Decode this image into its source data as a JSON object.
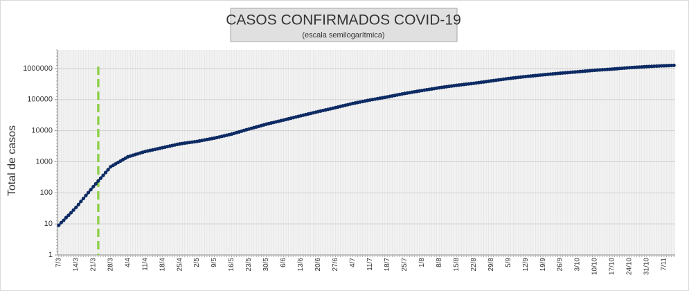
{
  "chart_data": {
    "type": "line",
    "title": "CASOS CONFIRMADOS COVID-19",
    "subtitle": "(escala semilogarítmica)",
    "y_label": "Total de casos",
    "log_y": true,
    "grid": true,
    "ylim": [
      1,
      4000000
    ],
    "yticks": [
      1,
      10,
      100,
      1000,
      10000,
      100000,
      1000000
    ],
    "vline": {
      "index": 16,
      "color": "#92d050"
    },
    "categories": [
      "7/3",
      null,
      null,
      null,
      null,
      null,
      null,
      "14/3",
      null,
      null,
      null,
      null,
      null,
      null,
      "21/3",
      null,
      null,
      null,
      null,
      null,
      null,
      "28/3",
      null,
      null,
      null,
      null,
      null,
      null,
      "4/4",
      null,
      null,
      null,
      null,
      null,
      null,
      "11/4",
      null,
      null,
      null,
      null,
      null,
      null,
      "18/4",
      null,
      null,
      null,
      null,
      null,
      null,
      "25/4",
      null,
      null,
      null,
      null,
      null,
      null,
      "2/5",
      null,
      null,
      null,
      null,
      null,
      null,
      "9/5",
      null,
      null,
      null,
      null,
      null,
      null,
      "16/5",
      null,
      null,
      null,
      null,
      null,
      null,
      "23/5",
      null,
      null,
      null,
      null,
      null,
      null,
      "30/5",
      null,
      null,
      null,
      null,
      null,
      null,
      "6/6",
      null,
      null,
      null,
      null,
      null,
      null,
      "13/6",
      null,
      null,
      null,
      null,
      null,
      null,
      "20/6",
      null,
      null,
      null,
      null,
      null,
      null,
      "27/6",
      null,
      null,
      null,
      null,
      null,
      null,
      "4/7",
      null,
      null,
      null,
      null,
      null,
      null,
      "11/7",
      null,
      null,
      null,
      null,
      null,
      null,
      "18/7",
      null,
      null,
      null,
      null,
      null,
      null,
      "25/7",
      null,
      null,
      null,
      null,
      null,
      null,
      "1/8",
      null,
      null,
      null,
      null,
      null,
      null,
      "8/8",
      null,
      null,
      null,
      null,
      null,
      null,
      "15/8",
      null,
      null,
      null,
      null,
      null,
      null,
      "22/8",
      null,
      null,
      null,
      null,
      null,
      null,
      "29/8",
      null,
      null,
      null,
      null,
      null,
      null,
      "5/9",
      null,
      null,
      null,
      null,
      null,
      null,
      "12/9",
      null,
      null,
      null,
      null,
      null,
      null,
      "19/9",
      null,
      null,
      null,
      null,
      null,
      null,
      "26/9",
      null,
      null,
      null,
      null,
      null,
      null,
      "3/10",
      null,
      null,
      null,
      null,
      null,
      null,
      "10/10",
      null,
      null,
      null,
      null,
      null,
      null,
      "17/10",
      null,
      null,
      null,
      null,
      null,
      null,
      "24/10",
      null,
      null,
      null,
      null,
      null,
      null,
      "31/10",
      null,
      null,
      null,
      null,
      null,
      null,
      "7/11",
      null,
      null,
      null,
      null
    ],
    "series": [
      {
        "name": "Total de casos",
        "color": "#0d2a63",
        "values": [
          9,
          11,
          13,
          16,
          19,
          23,
          28,
          34,
          42,
          53,
          66,
          82,
          102,
          127,
          158,
          195,
          241,
          297,
          366,
          452,
          558,
          690,
          767,
          853,
          949,
          1055,
          1173,
          1305,
          1451,
          1534,
          1621,
          1714,
          1811,
          1915,
          2024,
          2142,
          2230,
          2321,
          2416,
          2515,
          2618,
          2726,
          2839,
          2958,
          3082,
          3212,
          3347,
          3487,
          3634,
          3780,
          3880,
          3983,
          4088,
          4196,
          4307,
          4418,
          4532,
          4693,
          4860,
          5034,
          5213,
          5398,
          5582,
          5776,
          6031,
          6296,
          6573,
          6863,
          7165,
          7479,
          7805,
          8236,
          8689,
          9168,
          9673,
          10205,
          10770,
          11353,
          11945,
          12566,
          13220,
          13907,
          14631,
          15392,
          16214,
          16948,
          17714,
          18514,
          19350,
          20225,
          21138,
          22020,
          23055,
          24139,
          25273,
          26461,
          27705,
          29007,
          30295,
          31658,
          33083,
          34571,
          36127,
          37753,
          39452,
          41204,
          42976,
          44824,
          46751,
          48761,
          50858,
          53045,
          55343,
          57834,
          60436,
          63156,
          65998,
          68968,
          72071,
          75376,
          78203,
          81135,
          84178,
          87335,
          90610,
          94008,
          97509,
          100746,
          104091,
          107547,
          111117,
          114806,
          118618,
          122524,
          127094,
          131835,
          136752,
          141853,
          147144,
          152633,
          158334,
          163306,
          168434,
          173723,
          179178,
          184804,
          190607,
          196543,
          202439,
          208512,
          214768,
          221211,
          227847,
          234683,
          241811,
          248074,
          254499,
          261091,
          267853,
          274790,
          281907,
          289100,
          295460,
          301960,
          308603,
          315392,
          322331,
          329422,
          336802,
          345323,
          354060,
          363018,
          372202,
          381619,
          391274,
          401239,
          411471,
          421963,
          432723,
          443758,
          455074,
          466678,
          478792,
          489086,
          499601,
          510343,
          521315,
          532523,
          543972,
          555537,
          565759,
          576169,
          586771,
          597567,
          608562,
          619760,
          631365,
          642225,
          653271,
          664507,
          675937,
          687563,
          699389,
          711325,
          722208,
          733258,
          744477,
          755867,
          767432,
          779174,
          790818,
          803471,
          816327,
          829388,
          842658,
          856141,
          869839,
          883882,
          895107,
          906475,
          917987,
          929646,
          941452,
          953409,
          965609,
          979804,
          994207,
          1008822,
          1023652,
          1038700,
          1053969,
          1069368,
          1081452,
          1093672,
          1106031,
          1118529,
          1131168,
          1143951,
          1157179,
          1168288,
          1179503,
          1190827,
          1202259,
          1213801,
          1225453,
          1236851,
          1245000,
          1253000,
          1262000,
          1273000
        ]
      }
    ]
  }
}
